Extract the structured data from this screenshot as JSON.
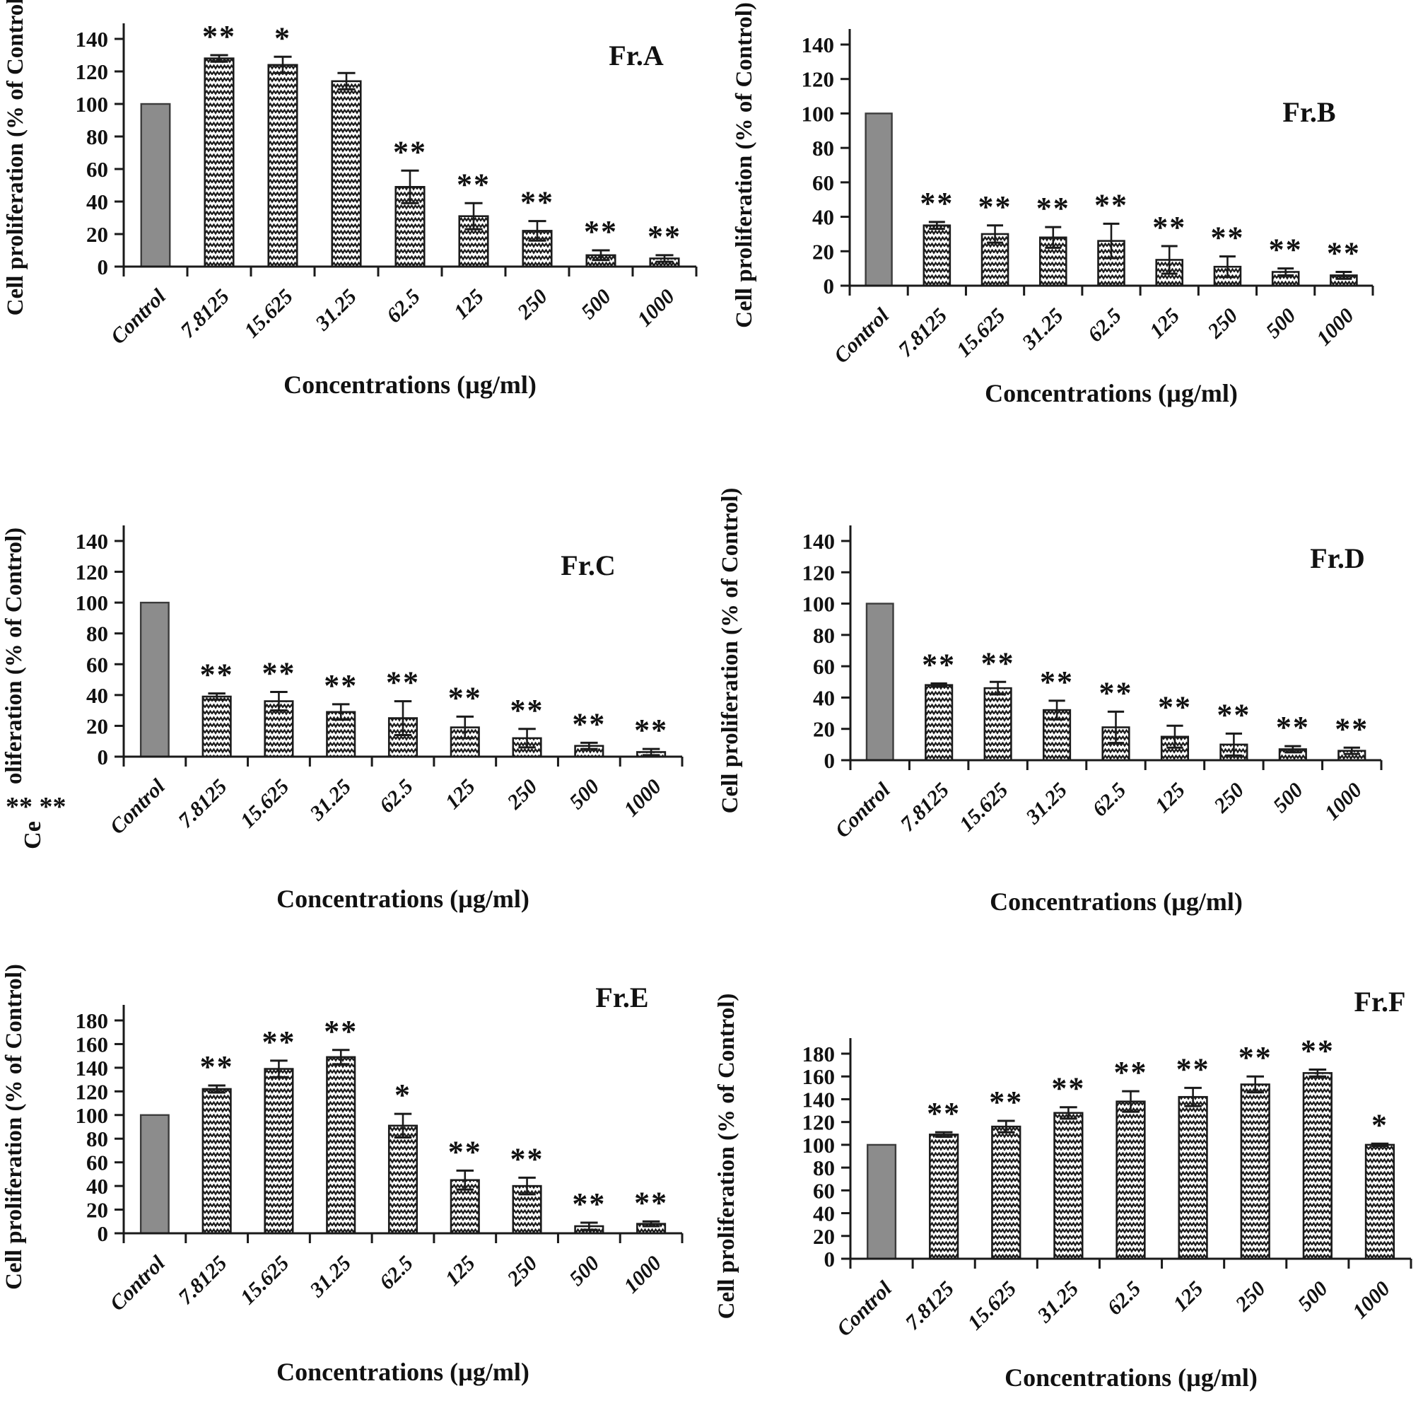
{
  "figure": {
    "description": "Six bar charts showing cell proliferation (% of control) at increasing concentrations for fractions A-F",
    "significance_symbols": {
      "single": "*",
      "double": "**"
    }
  },
  "colors": {
    "control_bar_fill": "#8c8c8c",
    "control_bar_border": "#3c3c3c",
    "treated_bar_fill": "#ffffff",
    "treated_bar_pattern": "#1b1b1b",
    "axis": "#1a1a1a",
    "text": "#111111",
    "background": "#ffffff"
  },
  "chart_data": [
    {
      "type": "bar",
      "title": "Fr.A",
      "xlabel": "Concentrations (µg/ml)",
      "ylabel": "Cell proliferation (% of Control)",
      "ylim": [
        0,
        140
      ],
      "ytick_step": 20,
      "categories": [
        "Control",
        "7.8125",
        "15.625",
        "31.25",
        "62.5",
        "125",
        "250",
        "500",
        "1000"
      ],
      "values": [
        100,
        128,
        124,
        114,
        49,
        31,
        22,
        7,
        5
      ],
      "errors": [
        0,
        2,
        5,
        5,
        10,
        8,
        6,
        3,
        2
      ],
      "significance": [
        "",
        "**",
        "*",
        "",
        "**",
        "**",
        "**",
        "**",
        "**"
      ]
    },
    {
      "type": "bar",
      "title": "Fr.B",
      "xlabel": "Concentrations (µg/ml)",
      "ylabel": "Cell proliferation (% of Control)",
      "ylim": [
        0,
        140
      ],
      "ytick_step": 20,
      "categories": [
        "Control",
        "7.8125",
        "15.625",
        "31.25",
        "62.5",
        "125",
        "250",
        "500",
        "1000"
      ],
      "values": [
        100,
        35,
        30,
        28,
        26,
        15,
        11,
        8,
        6
      ],
      "errors": [
        0,
        2,
        5,
        6,
        10,
        8,
        6,
        2,
        2
      ],
      "significance": [
        "",
        "**",
        "**",
        "**",
        "**",
        "**",
        "**",
        "**",
        "**"
      ]
    },
    {
      "type": "bar",
      "title": "Fr.C",
      "xlabel": "Concentrations (µg/ml)",
      "ylabel": "oliferation (% of Control)",
      "ylabel_fragments": [
        "** **",
        "Ce"
      ],
      "ylim": [
        0,
        140
      ],
      "ytick_step": 20,
      "categories": [
        "Control",
        "7.8125",
        "15.625",
        "31.25",
        "62.5",
        "125",
        "250",
        "500",
        "1000"
      ],
      "values": [
        100,
        39,
        36,
        29,
        25,
        19,
        12,
        7,
        3
      ],
      "errors": [
        0,
        2,
        6,
        5,
        11,
        7,
        6,
        2,
        2
      ],
      "significance": [
        "",
        "**",
        "**",
        "**",
        "**",
        "**",
        "**",
        "**",
        "**"
      ]
    },
    {
      "type": "bar",
      "title": "Fr.D",
      "xlabel": "Concentrations (µg/ml)",
      "ylabel": "Cell proliferation (% of Control)",
      "ylim": [
        0,
        140
      ],
      "ytick_step": 20,
      "categories": [
        "Control",
        "7.8125",
        "15.625",
        "31.25",
        "62.5",
        "125",
        "250",
        "500",
        "1000"
      ],
      "values": [
        100,
        48,
        46,
        32,
        21,
        15,
        10,
        7,
        6
      ],
      "errors": [
        0,
        1,
        4,
        6,
        10,
        7,
        7,
        2,
        2
      ],
      "significance": [
        "",
        "**",
        "**",
        "**",
        "**",
        "**",
        "**",
        "**",
        "**"
      ]
    },
    {
      "type": "bar",
      "title": "Fr.E",
      "xlabel": "Concentrations (µg/ml)",
      "ylabel": "Cell proliferation (% of Control)",
      "ylim": [
        0,
        180
      ],
      "ytick_step": 20,
      "categories": [
        "Control",
        "7.8125",
        "15.625",
        "31.25",
        "62.5",
        "125",
        "250",
        "500",
        "1000"
      ],
      "values": [
        100,
        122,
        139,
        149,
        91,
        45,
        40,
        6,
        8
      ],
      "errors": [
        0,
        3,
        7,
        6,
        10,
        8,
        7,
        3,
        2
      ],
      "significance": [
        "",
        "**",
        "**",
        "**",
        "*",
        "**",
        "**",
        "**",
        "**"
      ]
    },
    {
      "type": "bar",
      "title": "Fr.F",
      "xlabel": "Concentrations (µg/ml)",
      "ylabel": "Cell proliferation (% of Control)",
      "ylim": [
        0,
        180
      ],
      "ytick_step": 20,
      "categories": [
        "Control",
        "7.8125",
        "15.625",
        "31.25",
        "62.5",
        "125",
        "250",
        "500",
        "1000"
      ],
      "values": [
        100,
        109,
        116,
        128,
        138,
        142,
        153,
        163,
        100
      ],
      "errors": [
        0,
        2,
        5,
        5,
        9,
        8,
        7,
        3,
        1
      ],
      "significance": [
        "",
        "**",
        "**",
        "**",
        "**",
        "**",
        "**",
        "**",
        "*"
      ]
    }
  ]
}
